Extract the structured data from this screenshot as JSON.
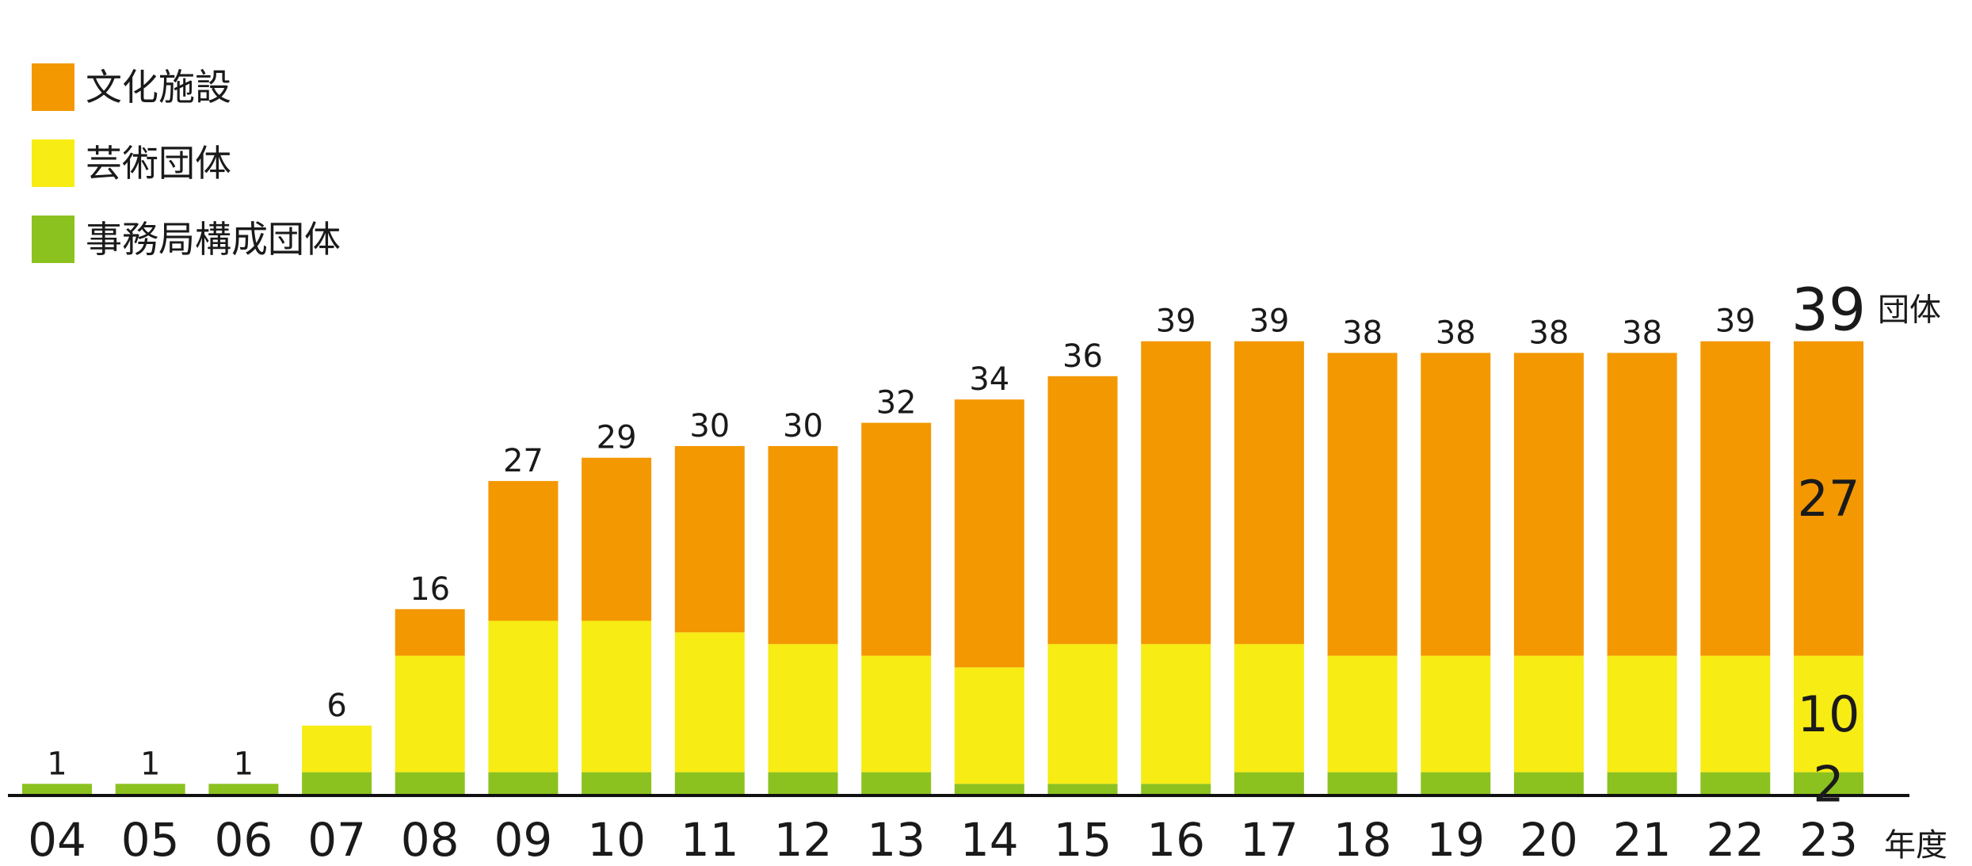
{
  "chart_data": {
    "type": "bar",
    "stacked": true,
    "categories": [
      "04",
      "05",
      "06",
      "07",
      "08",
      "09",
      "10",
      "11",
      "12",
      "13",
      "14",
      "15",
      "16",
      "17",
      "18",
      "19",
      "20",
      "21",
      "22",
      "23"
    ],
    "series": [
      {
        "name": "事務局構成団体",
        "color": "#8cc21f",
        "values": [
          1,
          1,
          1,
          2,
          2,
          2,
          2,
          2,
          2,
          2,
          1,
          1,
          1,
          2,
          2,
          2,
          2,
          2,
          2,
          2
        ]
      },
      {
        "name": "芸術団体",
        "color": "#f7ec14",
        "values": [
          0,
          0,
          0,
          4,
          10,
          13,
          13,
          12,
          11,
          10,
          10,
          12,
          12,
          11,
          10,
          10,
          10,
          10,
          10,
          10
        ]
      },
      {
        "name": "文化施設",
        "color": "#f39800",
        "values": [
          0,
          0,
          0,
          0,
          4,
          12,
          14,
          16,
          17,
          20,
          23,
          23,
          26,
          26,
          26,
          26,
          26,
          26,
          27,
          27
        ]
      }
    ],
    "totals": [
      1,
      1,
      1,
      6,
      16,
      27,
      29,
      30,
      30,
      32,
      34,
      36,
      39,
      39,
      38,
      38,
      38,
      38,
      39,
      39
    ],
    "last_bar_segment_labels": [
      "2",
      "10",
      "27"
    ],
    "last_total_unit": "団体",
    "xlabel": "年度",
    "ylim": [
      0,
      40
    ],
    "legend_position": "top-left",
    "grid": false
  }
}
